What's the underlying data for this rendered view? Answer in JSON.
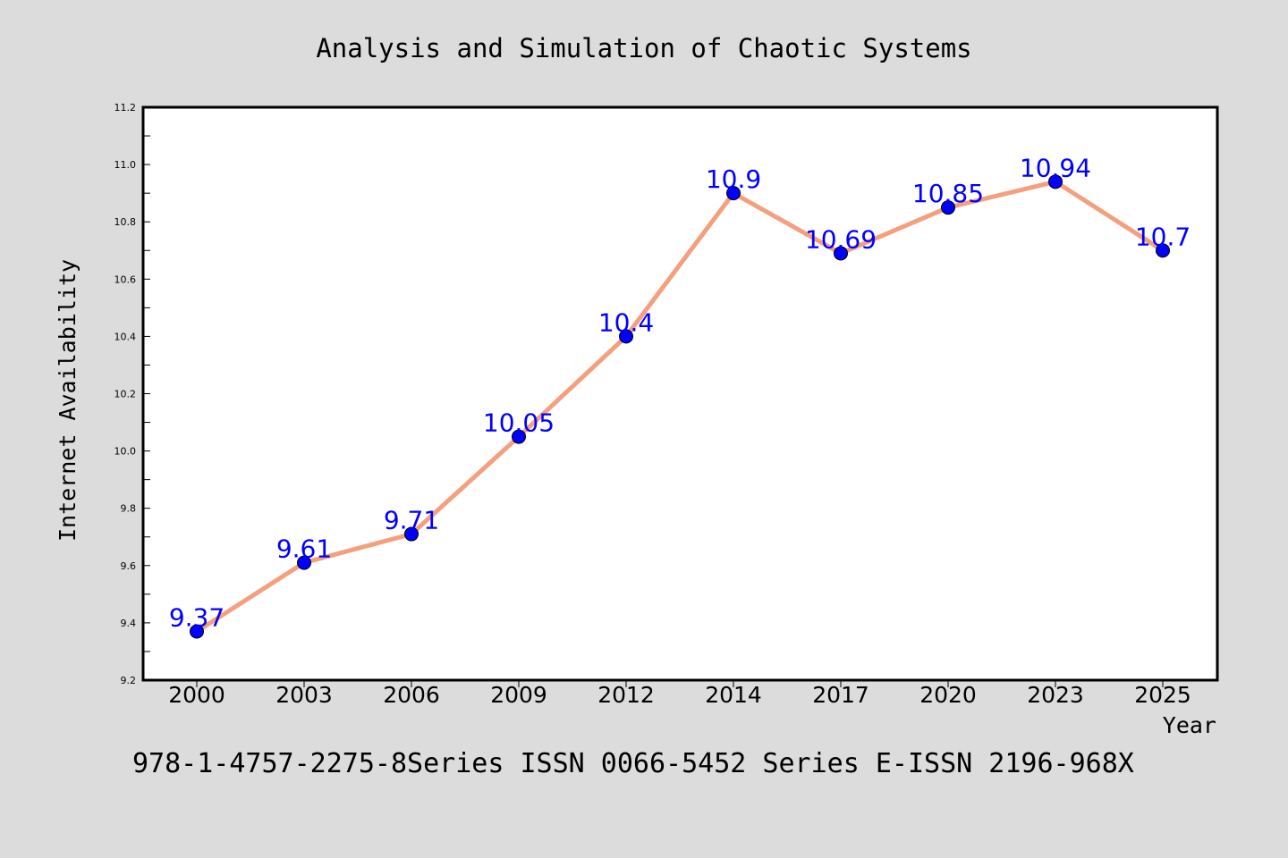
{
  "chart_data": {
    "type": "line",
    "title": "Analysis and Simulation of Chaotic Systems",
    "xlabel": "Year",
    "ylabel": "Internet Availability",
    "categories": [
      "2000",
      "2003",
      "2006",
      "2009",
      "2012",
      "2014",
      "2017",
      "2020",
      "2023",
      "2025"
    ],
    "series": [
      {
        "values": [
          9.37,
          9.61,
          9.71,
          10.05,
          10.4,
          10.9,
          10.69,
          10.85,
          10.94,
          10.7
        ]
      }
    ],
    "data_labels": [
      "9.37",
      "9.61",
      "9.71",
      "10.05",
      "10.4",
      "10.9",
      "10.69",
      "10.85",
      "10.94",
      "10.7"
    ],
    "ylim": [
      9.2,
      11.2
    ],
    "yticks": [
      "9.2",
      "9.4",
      "9.6",
      "9.8",
      "10.0",
      "10.2",
      "10.4",
      "10.6",
      "10.8",
      "11.0",
      "11.2"
    ],
    "grid": false,
    "legend": "none",
    "colors": {
      "line": "#f4a07e",
      "marker": "#0000ff",
      "label": "#0000ff",
      "background": "#dcdcdc",
      "plot_background": "#ffffff"
    }
  },
  "footer": "978-1-4757-2275-8Series ISSN 0066-5452 Series E-ISSN 2196-968X"
}
